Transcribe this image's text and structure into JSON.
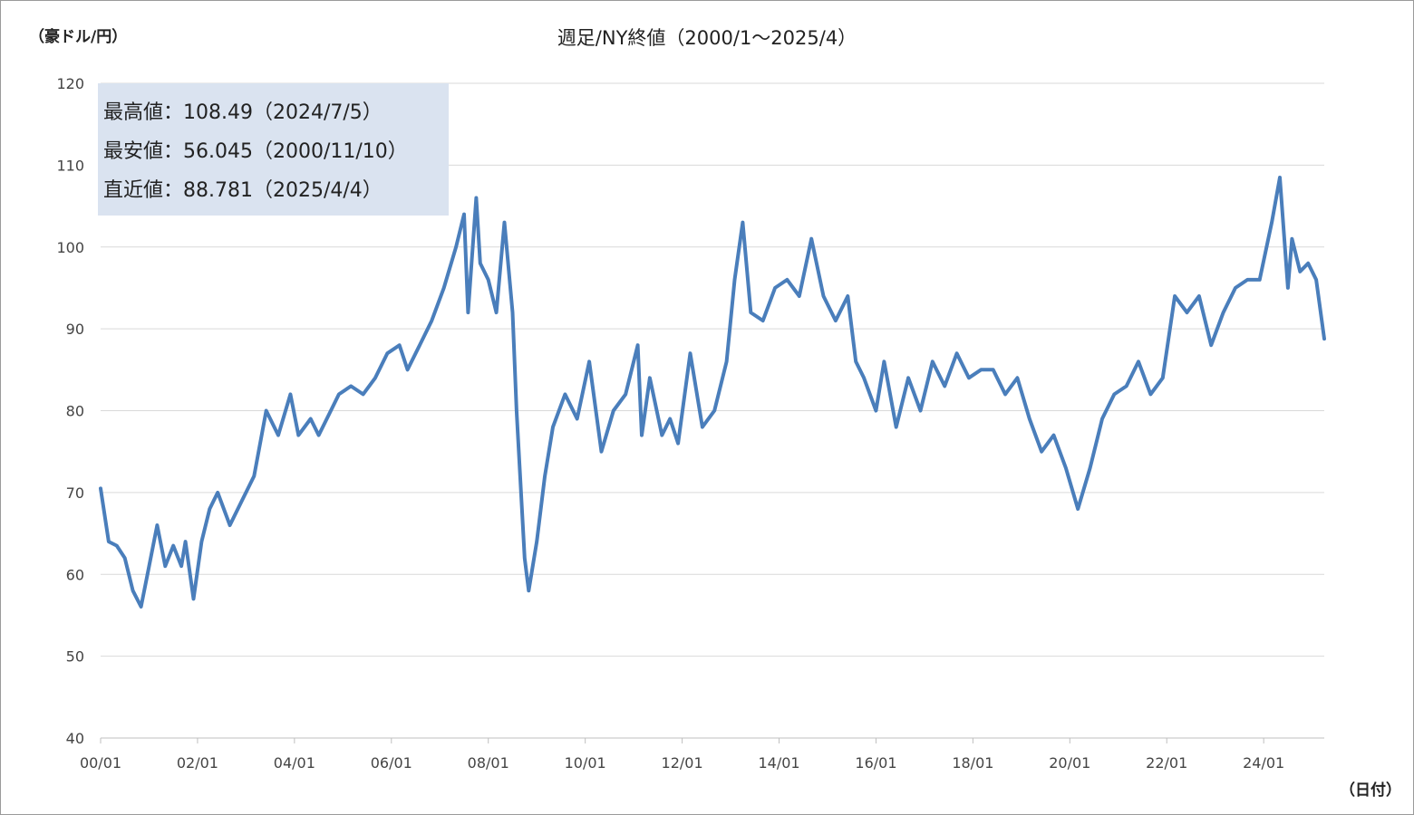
{
  "chart_data": {
    "type": "line",
    "title": "週足/NY終値（2000/1～2025/4）",
    "ylabel": "（豪ドル/円）",
    "xlabel": "（日付）",
    "ylim": [
      40,
      120
    ],
    "y_ticks": [
      "40",
      "50",
      "60",
      "70",
      "80",
      "90",
      "100",
      "110",
      "120"
    ],
    "x_ticks": [
      "00/01",
      "02/01",
      "04/01",
      "06/01",
      "08/01",
      "10/01",
      "12/01",
      "14/01",
      "16/01",
      "18/01",
      "20/01",
      "22/01",
      "24/01"
    ],
    "grid": true,
    "line_color": "#4a7ebb",
    "series": [
      {
        "x": [
          "2000-01",
          "2000-03",
          "2000-05",
          "2000-07",
          "2000-09",
          "2000-11",
          "2001-01",
          "2001-03",
          "2001-05",
          "2001-07",
          "2001-09",
          "2001-10",
          "2001-12",
          "2002-02",
          "2002-04",
          "2002-06",
          "2002-09",
          "2002-12",
          "2003-03",
          "2003-06",
          "2003-09",
          "2003-12",
          "2004-02",
          "2004-05",
          "2004-07",
          "2004-10",
          "2004-12",
          "2005-03",
          "2005-06",
          "2005-09",
          "2005-12",
          "2006-03",
          "2006-05",
          "2006-08",
          "2006-11",
          "2007-02",
          "2007-05",
          "2007-07",
          "2007-08",
          "2007-10",
          "2007-11",
          "2008-01",
          "2008-03",
          "2008-05",
          "2008-07",
          "2008-08",
          "2008-10",
          "2008-11",
          "2009-01",
          "2009-03",
          "2009-05",
          "2009-08",
          "2009-11",
          "2010-02",
          "2010-05",
          "2010-08",
          "2010-11",
          "2011-02",
          "2011-03",
          "2011-05",
          "2011-08",
          "2011-10",
          "2011-12",
          "2012-03",
          "2012-06",
          "2012-09",
          "2012-12",
          "2013-02",
          "2013-04",
          "2013-06",
          "2013-09",
          "2013-12",
          "2014-03",
          "2014-06",
          "2014-09",
          "2014-12",
          "2015-03",
          "2015-06",
          "2015-08",
          "2015-10",
          "2016-01",
          "2016-03",
          "2016-06",
          "2016-09",
          "2016-12",
          "2017-03",
          "2017-06",
          "2017-09",
          "2017-12",
          "2018-03",
          "2018-06",
          "2018-09",
          "2018-12",
          "2019-03",
          "2019-06",
          "2019-09",
          "2019-12",
          "2020-03",
          "2020-06",
          "2020-09",
          "2020-12",
          "2021-03",
          "2021-06",
          "2021-09",
          "2021-12",
          "2022-03",
          "2022-06",
          "2022-09",
          "2022-12",
          "2023-03",
          "2023-06",
          "2023-09",
          "2023-12",
          "2024-03",
          "2024-05",
          "2024-07",
          "2024-08",
          "2024-10",
          "2024-12",
          "2025-02",
          "2025-04"
        ],
        "values": [
          70.5,
          64,
          63.5,
          62,
          58,
          56.045,
          61,
          66,
          61,
          63.5,
          61,
          64,
          57,
          64,
          68,
          70,
          66,
          69,
          72,
          80,
          77,
          82,
          77,
          79,
          77,
          80,
          82,
          83,
          82,
          84,
          87,
          88,
          85,
          88,
          91,
          95,
          100,
          104,
          92,
          106,
          98,
          96,
          92,
          103,
          92,
          80,
          62,
          58,
          64,
          72,
          78,
          82,
          79,
          86,
          75,
          80,
          82,
          88,
          77,
          84,
          77,
          79,
          76,
          87,
          78,
          80,
          86,
          96,
          103,
          92,
          91,
          95,
          96,
          94,
          101,
          94,
          91,
          94,
          86,
          84,
          80,
          86,
          78,
          84,
          80,
          86,
          83,
          87,
          84,
          85,
          85,
          82,
          84,
          79,
          75,
          77,
          73,
          68,
          73,
          79,
          82,
          83,
          86,
          82,
          84,
          94,
          92,
          94,
          88,
          92,
          95,
          96,
          96,
          103,
          108.49,
          95,
          101,
          97,
          98,
          96,
          88.781
        ]
      }
    ]
  },
  "stats": {
    "high": "最高値：108.49（2024/7/5）",
    "low": "最安値：56.045（2000/11/10）",
    "latest": "直近値：88.781（2025/4/4）"
  }
}
